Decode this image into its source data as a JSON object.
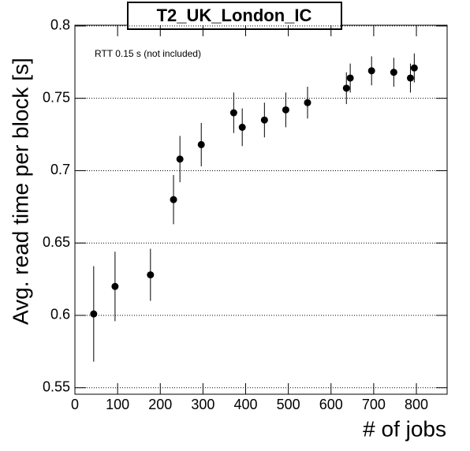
{
  "chart_data": {
    "type": "scatter",
    "title": "T2_UK_London_IC",
    "annotation": "RTT 0.15 s (not included)",
    "x_label": "# of jobs",
    "y_label": "Avg. read time per block [s]",
    "x": [
      44,
      94,
      177,
      231,
      246,
      296,
      372,
      392,
      444,
      494,
      545,
      636,
      645,
      695,
      747,
      786,
      795
    ],
    "values": [
      0.601,
      0.62,
      0.628,
      0.68,
      0.708,
      0.718,
      0.74,
      0.73,
      0.735,
      0.742,
      0.747,
      0.757,
      0.764,
      0.769,
      0.768,
      0.764,
      0.771
    ],
    "errors": [
      0.033,
      0.024,
      0.018,
      0.017,
      0.016,
      0.015,
      0.014,
      0.013,
      0.012,
      0.012,
      0.011,
      0.011,
      0.01,
      0.01,
      0.01,
      0.01,
      0.01
    ],
    "color": "#000000",
    "xlim": [
      0,
      872
    ],
    "ylim": [
      0.5455,
      0.8005
    ],
    "xticks": [
      0,
      100,
      200,
      300,
      400,
      500,
      600,
      700,
      800
    ],
    "yticks": [
      0.55,
      0.6,
      0.65,
      0.7,
      0.75,
      0.8
    ],
    "grid": true
  }
}
